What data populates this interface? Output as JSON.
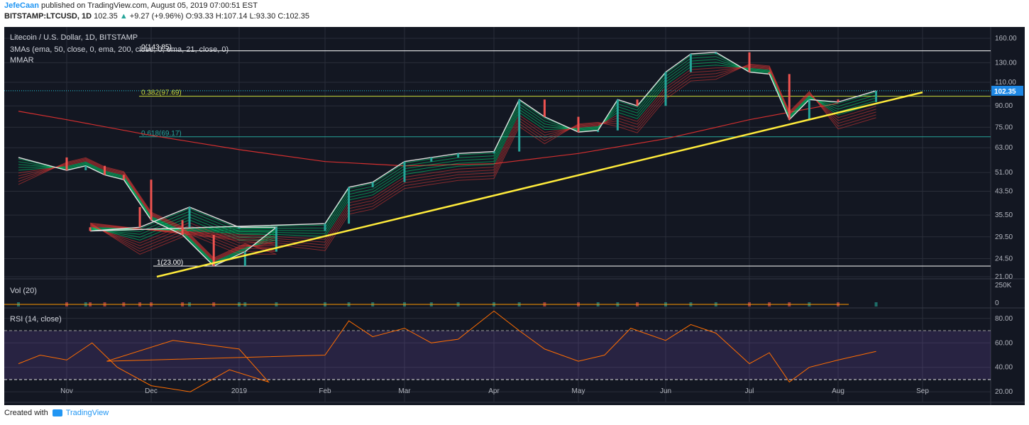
{
  "header": {
    "author": "JefeCaan",
    "published_text": "published on TradingView.com, August 05, 2019 07:00:51 EST",
    "symbol": "BITSTAMP:LTCUSD, 1D",
    "last": "102.35",
    "change": "+9.27 (+9.96%)",
    "ohlc": "O:93.33 H:107.14 L:93.30 C:102.35"
  },
  "legend": {
    "title": "Litecoin / U.S. Dollar, 1D, BITSTAMP",
    "study1": "3MAs (ema, 50, close, 0, ema, 200, close, 0, ema, 21, close, 0)",
    "study2": "MMAR",
    "vol": "Vol (20)",
    "rsi": "RSI (14, close)"
  },
  "footer": {
    "created_with": "Created with",
    "brand": "TradingView"
  },
  "colors": {
    "background": "#131722",
    "grid": "#2a2e39",
    "text": "#b2b5be",
    "up": "#26a69a",
    "down": "#ef5350",
    "trendline": "#ffeb3b",
    "fib_382": "#cddc39",
    "fib_618": "#26a69a",
    "rsi_line": "#ff6d00",
    "rsi_band": "#7e57c2",
    "price_label_bg": "#26c6da",
    "current_price_box": "#1e88e5"
  },
  "chart_data": {
    "type": "line",
    "x_labels": [
      "Nov",
      "Dec",
      "2019",
      "Feb",
      "Mar",
      "Apr",
      "May",
      "Jun",
      "Jul",
      "Aug",
      "Sep"
    ],
    "price_axis_labels": [
      "160.00",
      "130.00",
      "110.00",
      "90.00",
      "75.00",
      "63.00",
      "51.00",
      "43.50",
      "35.50",
      "29.50",
      "24.50",
      "21.00"
    ],
    "price_axis_values": [
      160,
      130,
      110,
      90,
      75,
      63,
      51,
      43.5,
      35.5,
      29.5,
      24.5,
      21
    ],
    "current_price": 102.35,
    "fib_levels": [
      {
        "label": "0(143.85)",
        "value": 143.85
      },
      {
        "label": "0.382(97.69)",
        "value": 97.69
      },
      {
        "label": "0.618(69.17)",
        "value": 69.17
      },
      {
        "label": "1(23.00)",
        "value": 23.0
      }
    ],
    "price_series": [
      [
        "Oct",
        58
      ],
      [
        "Nov",
        52
      ],
      [
        "Nov",
        54
      ],
      [
        "Nov",
        50
      ],
      [
        "Nov",
        48
      ],
      [
        "Dec",
        34
      ],
      [
        "Dec",
        30
      ],
      [
        "Dec",
        23
      ],
      [
        "Dec",
        26
      ],
      [
        "Dec",
        32
      ],
      [
        "2019",
        32
      ],
      [
        "2019",
        38
      ],
      [
        "2019",
        32
      ],
      [
        "2019",
        31
      ],
      [
        "Feb",
        33
      ],
      [
        "Feb",
        45
      ],
      [
        "Feb",
        47
      ],
      [
        "Mar",
        56
      ],
      [
        "Mar",
        58
      ],
      [
        "Mar",
        60
      ],
      [
        "Apr",
        61
      ],
      [
        "Apr",
        95
      ],
      [
        "Apr",
        82
      ],
      [
        "May",
        72
      ],
      [
        "May",
        73
      ],
      [
        "May",
        95
      ],
      [
        "May",
        90
      ],
      [
        "Jun",
        120
      ],
      [
        "Jun",
        140
      ],
      [
        "Jun",
        142
      ],
      [
        "Jul",
        120
      ],
      [
        "Jul",
        118
      ],
      [
        "Jul",
        80
      ],
      [
        "Jul",
        95
      ],
      [
        "Aug",
        93
      ],
      [
        "Aug",
        102.35
      ]
    ],
    "ema200": [
      [
        "Oct",
        86
      ],
      [
        "Nov",
        80
      ],
      [
        "Dec",
        70
      ],
      [
        "2019",
        62
      ],
      [
        "Feb",
        56
      ],
      [
        "Mar",
        54
      ],
      [
        "Apr",
        55
      ],
      [
        "May",
        60
      ],
      [
        "Jun",
        68
      ],
      [
        "Jul",
        80
      ],
      [
        "Aug",
        92
      ]
    ],
    "trendline": {
      "start": [
        "Dec",
        21
      ],
      "end": [
        "Sep",
        101
      ]
    },
    "volume_axis_labels": [
      "250K",
      "0"
    ],
    "rsi_axis_labels": [
      "80.00",
      "60.00",
      "40.00",
      "20.00"
    ],
    "rsi_axis_values": [
      80,
      60,
      40,
      20
    ],
    "rsi_band": [
      30,
      70
    ],
    "rsi_series": [
      [
        "Oct",
        43
      ],
      [
        "Oct",
        50
      ],
      [
        "Nov",
        46
      ],
      [
        "Nov",
        60
      ],
      [
        "Nov",
        40
      ],
      [
        "Dec",
        25
      ],
      [
        "Dec",
        20
      ],
      [
        "Dec",
        38
      ],
      [
        "Dec",
        28
      ],
      [
        "2019",
        55
      ],
      [
        "2019",
        62
      ],
      [
        "2019",
        45
      ],
      [
        "Feb",
        50
      ],
      [
        "Feb",
        78
      ],
      [
        "Feb",
        65
      ],
      [
        "Mar",
        72
      ],
      [
        "Mar",
        60
      ],
      [
        "Mar",
        63
      ],
      [
        "Apr",
        86
      ],
      [
        "Apr",
        70
      ],
      [
        "Apr",
        55
      ],
      [
        "May",
        45
      ],
      [
        "May",
        50
      ],
      [
        "May",
        72
      ],
      [
        "Jun",
        62
      ],
      [
        "Jun",
        75
      ],
      [
        "Jun",
        68
      ],
      [
        "Jul",
        43
      ],
      [
        "Jul",
        52
      ],
      [
        "Jul",
        28
      ],
      [
        "Jul",
        40
      ],
      [
        "Aug",
        46
      ],
      [
        "Aug",
        53
      ]
    ]
  }
}
